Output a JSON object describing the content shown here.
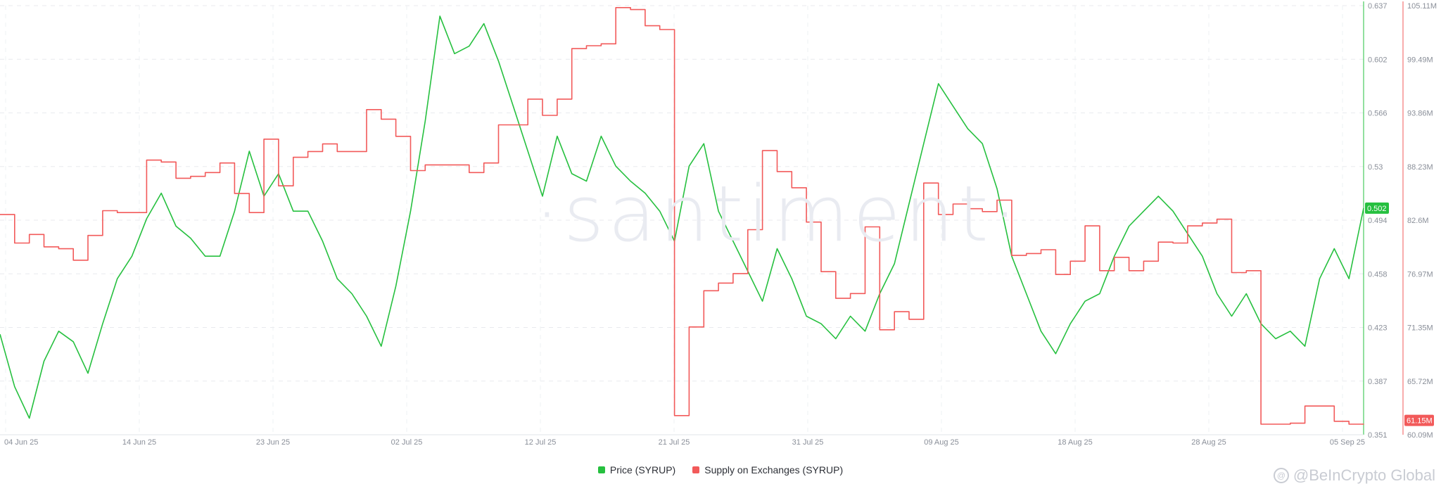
{
  "watermark": "·santiment·",
  "credit": {
    "text": "@BeInCrypto Global",
    "icon": "at-sign-icon"
  },
  "legend": [
    {
      "label": "Price (SYRUP)",
      "color": "#26c03f"
    },
    {
      "label": "Supply on Exchanges (SYRUP)",
      "color": "#f25a5a"
    }
  ],
  "chart_data": {
    "type": "line",
    "x_start": "2025-06-04",
    "x_end": "2025-09-05",
    "x_ticks": [
      "04 Jun 25",
      "14 Jun 25",
      "23 Jun 25",
      "02 Jul 25",
      "12 Jul 25",
      "21 Jul 25",
      "31 Jul 25",
      "09 Aug 25",
      "18 Aug 25",
      "28 Aug 25",
      "05 Sep 25"
    ],
    "grid": true,
    "legend_position": "bottom-center",
    "y_left": {
      "ticks": [
        "0.637",
        "0.602",
        "0.566",
        "0.53",
        "0.494",
        "0.458",
        "0.423",
        "0.387",
        "0.351"
      ],
      "range": [
        0.351,
        0.637
      ],
      "current_label": "0.502",
      "color": "#26c03f"
    },
    "y_right": {
      "ticks": [
        "105.11M",
        "99.49M",
        "93.86M",
        "88.23M",
        "82.6M",
        "76.97M",
        "71.35M",
        "65.72M",
        "60.09M"
      ],
      "range": [
        60.09,
        105.11
      ],
      "unit": "M",
      "current_label": "61.15M",
      "color": "#f25a5a"
    },
    "series": [
      {
        "name": "Price (SYRUP)",
        "axis": "left",
        "color": "#26c03f",
        "points": [
          [
            "2025-06-04",
            0.418
          ],
          [
            "2025-06-05",
            0.383
          ],
          [
            "2025-06-06",
            0.362
          ],
          [
            "2025-06-07",
            0.4
          ],
          [
            "2025-06-08",
            0.42
          ],
          [
            "2025-06-09",
            0.413
          ],
          [
            "2025-06-10",
            0.392
          ],
          [
            "2025-06-11",
            0.425
          ],
          [
            "2025-06-12",
            0.455
          ],
          [
            "2025-06-13",
            0.47
          ],
          [
            "2025-06-14",
            0.495
          ],
          [
            "2025-06-15",
            0.512
          ],
          [
            "2025-06-16",
            0.49
          ],
          [
            "2025-06-17",
            0.482
          ],
          [
            "2025-06-18",
            0.47
          ],
          [
            "2025-06-19",
            0.47
          ],
          [
            "2025-06-20",
            0.5
          ],
          [
            "2025-06-21",
            0.54
          ],
          [
            "2025-06-22",
            0.51
          ],
          [
            "2025-06-23",
            0.525
          ],
          [
            "2025-06-24",
            0.5
          ],
          [
            "2025-06-25",
            0.5
          ],
          [
            "2025-06-26",
            0.48
          ],
          [
            "2025-06-27",
            0.455
          ],
          [
            "2025-06-28",
            0.445
          ],
          [
            "2025-06-29",
            0.43
          ],
          [
            "2025-06-30",
            0.41
          ],
          [
            "2025-07-01",
            0.45
          ],
          [
            "2025-07-02",
            0.5
          ],
          [
            "2025-07-03",
            0.56
          ],
          [
            "2025-07-04",
            0.63
          ],
          [
            "2025-07-05",
            0.605
          ],
          [
            "2025-07-06",
            0.61
          ],
          [
            "2025-07-07",
            0.625
          ],
          [
            "2025-07-08",
            0.6
          ],
          [
            "2025-07-09",
            0.57
          ],
          [
            "2025-07-10",
            0.54
          ],
          [
            "2025-07-11",
            0.51
          ],
          [
            "2025-07-12",
            0.55
          ],
          [
            "2025-07-13",
            0.525
          ],
          [
            "2025-07-14",
            0.52
          ],
          [
            "2025-07-15",
            0.55
          ],
          [
            "2025-07-16",
            0.53
          ],
          [
            "2025-07-17",
            0.52
          ],
          [
            "2025-07-18",
            0.512
          ],
          [
            "2025-07-19",
            0.5
          ],
          [
            "2025-07-20",
            0.48
          ],
          [
            "2025-07-21",
            0.53
          ],
          [
            "2025-07-22",
            0.545
          ],
          [
            "2025-07-23",
            0.5
          ],
          [
            "2025-07-24",
            0.48
          ],
          [
            "2025-07-25",
            0.46
          ],
          [
            "2025-07-26",
            0.44
          ],
          [
            "2025-07-27",
            0.475
          ],
          [
            "2025-07-28",
            0.455
          ],
          [
            "2025-07-29",
            0.43
          ],
          [
            "2025-07-30",
            0.425
          ],
          [
            "2025-07-31",
            0.415
          ],
          [
            "2025-08-01",
            0.43
          ],
          [
            "2025-08-02",
            0.42
          ],
          [
            "2025-08-03",
            0.445
          ],
          [
            "2025-08-04",
            0.465
          ],
          [
            "2025-08-05",
            0.505
          ],
          [
            "2025-08-06",
            0.545
          ],
          [
            "2025-08-07",
            0.585
          ],
          [
            "2025-08-08",
            0.57
          ],
          [
            "2025-08-09",
            0.555
          ],
          [
            "2025-08-10",
            0.545
          ],
          [
            "2025-08-11",
            0.515
          ],
          [
            "2025-08-12",
            0.47
          ],
          [
            "2025-08-13",
            0.445
          ],
          [
            "2025-08-14",
            0.42
          ],
          [
            "2025-08-15",
            0.405
          ],
          [
            "2025-08-16",
            0.425
          ],
          [
            "2025-08-17",
            0.44
          ],
          [
            "2025-08-18",
            0.445
          ],
          [
            "2025-08-19",
            0.47
          ],
          [
            "2025-08-20",
            0.49
          ],
          [
            "2025-08-21",
            0.5
          ],
          [
            "2025-08-22",
            0.51
          ],
          [
            "2025-08-23",
            0.5
          ],
          [
            "2025-08-24",
            0.485
          ],
          [
            "2025-08-25",
            0.47
          ],
          [
            "2025-08-26",
            0.445
          ],
          [
            "2025-08-27",
            0.43
          ],
          [
            "2025-08-28",
            0.445
          ],
          [
            "2025-08-29",
            0.425
          ],
          [
            "2025-08-30",
            0.415
          ],
          [
            "2025-08-31",
            0.42
          ],
          [
            "2025-09-01",
            0.41
          ],
          [
            "2025-09-02",
            0.455
          ],
          [
            "2025-09-03",
            0.475
          ],
          [
            "2025-09-04",
            0.455
          ],
          [
            "2025-09-05",
            0.502
          ]
        ]
      },
      {
        "name": "Supply on Exchanges (SYRUP)",
        "axis": "right",
        "color": "#f25a5a",
        "points": [
          [
            "2025-06-04",
            83.2
          ],
          [
            "2025-06-05",
            80.2
          ],
          [
            "2025-06-06",
            81.1
          ],
          [
            "2025-06-07",
            79.8
          ],
          [
            "2025-06-08",
            79.6
          ],
          [
            "2025-06-09",
            78.4
          ],
          [
            "2025-06-10",
            81.0
          ],
          [
            "2025-06-11",
            83.6
          ],
          [
            "2025-06-12",
            83.4
          ],
          [
            "2025-06-13",
            83.4
          ],
          [
            "2025-06-14",
            88.9
          ],
          [
            "2025-06-15",
            88.7
          ],
          [
            "2025-06-16",
            87.0
          ],
          [
            "2025-06-17",
            87.2
          ],
          [
            "2025-06-18",
            87.6
          ],
          [
            "2025-06-19",
            88.6
          ],
          [
            "2025-06-20",
            85.4
          ],
          [
            "2025-06-21",
            83.4
          ],
          [
            "2025-06-22",
            91.1
          ],
          [
            "2025-06-23",
            86.2
          ],
          [
            "2025-06-24",
            89.2
          ],
          [
            "2025-06-25",
            89.8
          ],
          [
            "2025-06-26",
            90.6
          ],
          [
            "2025-06-27",
            89.8
          ],
          [
            "2025-06-28",
            89.8
          ],
          [
            "2025-06-29",
            94.2
          ],
          [
            "2025-06-30",
            93.2
          ],
          [
            "2025-07-01",
            91.4
          ],
          [
            "2025-07-02",
            87.8
          ],
          [
            "2025-07-03",
            88.4
          ],
          [
            "2025-07-04",
            88.4
          ],
          [
            "2025-07-05",
            88.4
          ],
          [
            "2025-07-06",
            87.6
          ],
          [
            "2025-07-07",
            88.6
          ],
          [
            "2025-07-08",
            92.6
          ],
          [
            "2025-07-09",
            92.6
          ],
          [
            "2025-07-10",
            95.3
          ],
          [
            "2025-07-11",
            93.6
          ],
          [
            "2025-07-12",
            95.3
          ],
          [
            "2025-07-13",
            100.6
          ],
          [
            "2025-07-14",
            100.9
          ],
          [
            "2025-07-15",
            101.1
          ],
          [
            "2025-07-16",
            104.9
          ],
          [
            "2025-07-17",
            104.7
          ],
          [
            "2025-07-18",
            103.0
          ],
          [
            "2025-07-19",
            102.6
          ],
          [
            "2025-07-20",
            62.1
          ],
          [
            "2025-07-21",
            71.4
          ],
          [
            "2025-07-22",
            75.2
          ],
          [
            "2025-07-23",
            76.0
          ],
          [
            "2025-07-24",
            77.0
          ],
          [
            "2025-07-25",
            81.6
          ],
          [
            "2025-07-26",
            89.9
          ],
          [
            "2025-07-27",
            87.7
          ],
          [
            "2025-07-28",
            86.0
          ],
          [
            "2025-07-29",
            82.4
          ],
          [
            "2025-07-30",
            77.2
          ],
          [
            "2025-07-31",
            74.4
          ],
          [
            "2025-08-01",
            74.9
          ],
          [
            "2025-08-02",
            81.9
          ],
          [
            "2025-08-03",
            71.1
          ],
          [
            "2025-08-04",
            73.0
          ],
          [
            "2025-08-05",
            72.2
          ],
          [
            "2025-08-06",
            86.5
          ],
          [
            "2025-08-07",
            83.2
          ],
          [
            "2025-08-08",
            84.3
          ],
          [
            "2025-08-09",
            83.8
          ],
          [
            "2025-08-10",
            83.5
          ],
          [
            "2025-08-11",
            84.7
          ],
          [
            "2025-08-12",
            78.9
          ],
          [
            "2025-08-13",
            79.1
          ],
          [
            "2025-08-14",
            79.5
          ],
          [
            "2025-08-15",
            76.9
          ],
          [
            "2025-08-16",
            78.3
          ],
          [
            "2025-08-17",
            82.0
          ],
          [
            "2025-08-18",
            77.3
          ],
          [
            "2025-08-19",
            78.7
          ],
          [
            "2025-08-20",
            77.3
          ],
          [
            "2025-08-21",
            78.3
          ],
          [
            "2025-08-22",
            80.3
          ],
          [
            "2025-08-23",
            80.2
          ],
          [
            "2025-08-24",
            82.0
          ],
          [
            "2025-08-25",
            82.3
          ],
          [
            "2025-08-26",
            82.7
          ],
          [
            "2025-08-27",
            77.1
          ],
          [
            "2025-08-28",
            77.3
          ],
          [
            "2025-08-29",
            61.2
          ],
          [
            "2025-08-30",
            61.2
          ],
          [
            "2025-08-31",
            61.3
          ],
          [
            "2025-09-01",
            63.1
          ],
          [
            "2025-09-02",
            63.1
          ],
          [
            "2025-09-03",
            61.5
          ],
          [
            "2025-09-04",
            61.2
          ],
          [
            "2025-09-05",
            61.15
          ]
        ]
      }
    ]
  }
}
